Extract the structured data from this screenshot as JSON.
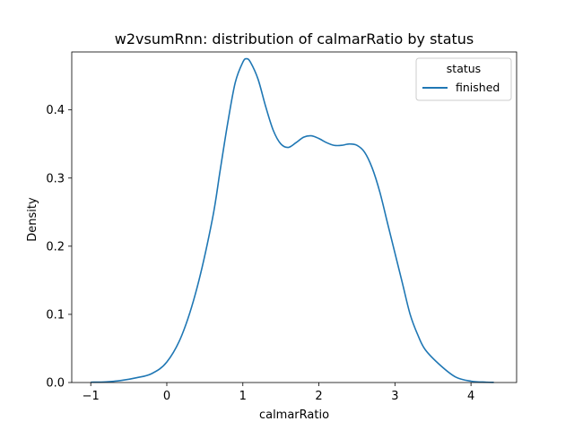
{
  "chart_data": {
    "type": "line",
    "title": "w2vsumRnn: distribution of calmarRatio by status",
    "xlabel": "calmarRatio",
    "ylabel": "Density",
    "xlim": [
      -1.25,
      4.6
    ],
    "ylim": [
      0,
      0.485
    ],
    "xticks": [
      -1,
      0,
      1,
      2,
      3,
      4
    ],
    "yticks": [
      0.0,
      0.1,
      0.2,
      0.3,
      0.4
    ],
    "ytick_labels": [
      "0.0",
      "0.1",
      "0.2",
      "0.3",
      "0.4"
    ],
    "xtick_labels": [
      "−1",
      "0",
      "1",
      "2",
      "3",
      "4"
    ],
    "grid": false,
    "legend": {
      "title": "status",
      "placement": "top-right"
    },
    "series": [
      {
        "name": "finished",
        "color": "#1f77b4",
        "x": [
          -1.0,
          -0.8,
          -0.6,
          -0.4,
          -0.2,
          0.0,
          0.2,
          0.4,
          0.6,
          0.7,
          0.8,
          0.9,
          1.0,
          1.05,
          1.1,
          1.2,
          1.3,
          1.4,
          1.5,
          1.6,
          1.7,
          1.8,
          1.9,
          2.0,
          2.1,
          2.2,
          2.3,
          2.4,
          2.5,
          2.6,
          2.7,
          2.8,
          2.9,
          3.0,
          3.1,
          3.2,
          3.3,
          3.4,
          3.6,
          3.8,
          4.0,
          4.2,
          4.3
        ],
        "values": [
          0.0005,
          0.001,
          0.003,
          0.007,
          0.013,
          0.03,
          0.07,
          0.14,
          0.24,
          0.31,
          0.38,
          0.44,
          0.47,
          0.475,
          0.47,
          0.445,
          0.405,
          0.37,
          0.35,
          0.345,
          0.352,
          0.36,
          0.362,
          0.358,
          0.352,
          0.348,
          0.348,
          0.35,
          0.348,
          0.338,
          0.315,
          0.28,
          0.235,
          0.19,
          0.145,
          0.1,
          0.07,
          0.048,
          0.025,
          0.008,
          0.002,
          0.0005,
          0.0002
        ]
      }
    ]
  }
}
